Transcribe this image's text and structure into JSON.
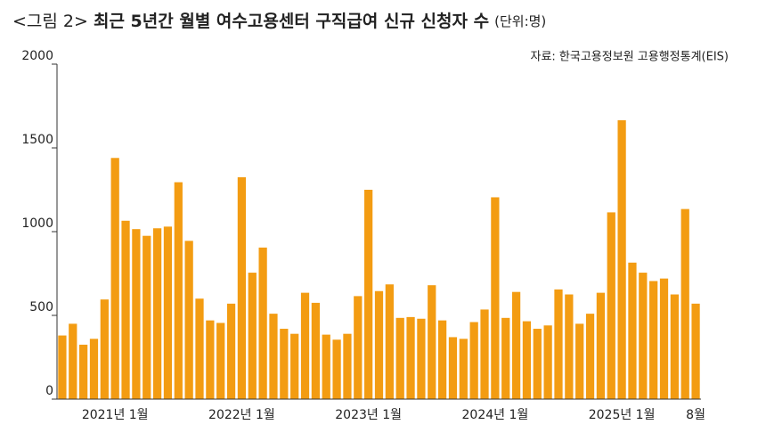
{
  "chart_data": {
    "type": "bar",
    "figure_label": "<그림 2>",
    "title": "최근 5년간 월별 여수고용센터 구직급여 신규 신청자 수",
    "unit": "(단위:명)",
    "source": "자료: 한국고용정보원 고용행정통계(EIS)",
    "categories": [
      null,
      null,
      null,
      null,
      null,
      "2021년 1월",
      null,
      null,
      null,
      null,
      null,
      null,
      null,
      null,
      null,
      null,
      null,
      "2022년 1월",
      null,
      null,
      null,
      null,
      null,
      null,
      null,
      null,
      null,
      null,
      null,
      "2023년 1월",
      null,
      null,
      null,
      null,
      null,
      null,
      null,
      null,
      null,
      null,
      null,
      "2024년 1월",
      null,
      null,
      null,
      null,
      null,
      null,
      null,
      null,
      null,
      null,
      null,
      "2025년 1월",
      null,
      null,
      null,
      null,
      null,
      null,
      "8월"
    ],
    "values": [
      380,
      450,
      325,
      360,
      595,
      1440,
      1065,
      1015,
      975,
      1020,
      1030,
      1295,
      945,
      600,
      470,
      455,
      570,
      1325,
      755,
      905,
      510,
      420,
      390,
      635,
      575,
      385,
      355,
      390,
      615,
      1250,
      645,
      685,
      485,
      490,
      480,
      680,
      470,
      370,
      360,
      460,
      535,
      1205,
      485,
      640,
      465,
      420,
      440,
      655,
      625,
      450,
      510,
      635,
      1115,
      1665,
      815,
      755,
      705,
      720,
      625,
      1135,
      570
    ],
    "color": "#f39c12",
    "ylim": [
      0,
      2000
    ],
    "yticks": [
      0,
      500,
      1000,
      1500,
      2000
    ],
    "grid": false
  }
}
